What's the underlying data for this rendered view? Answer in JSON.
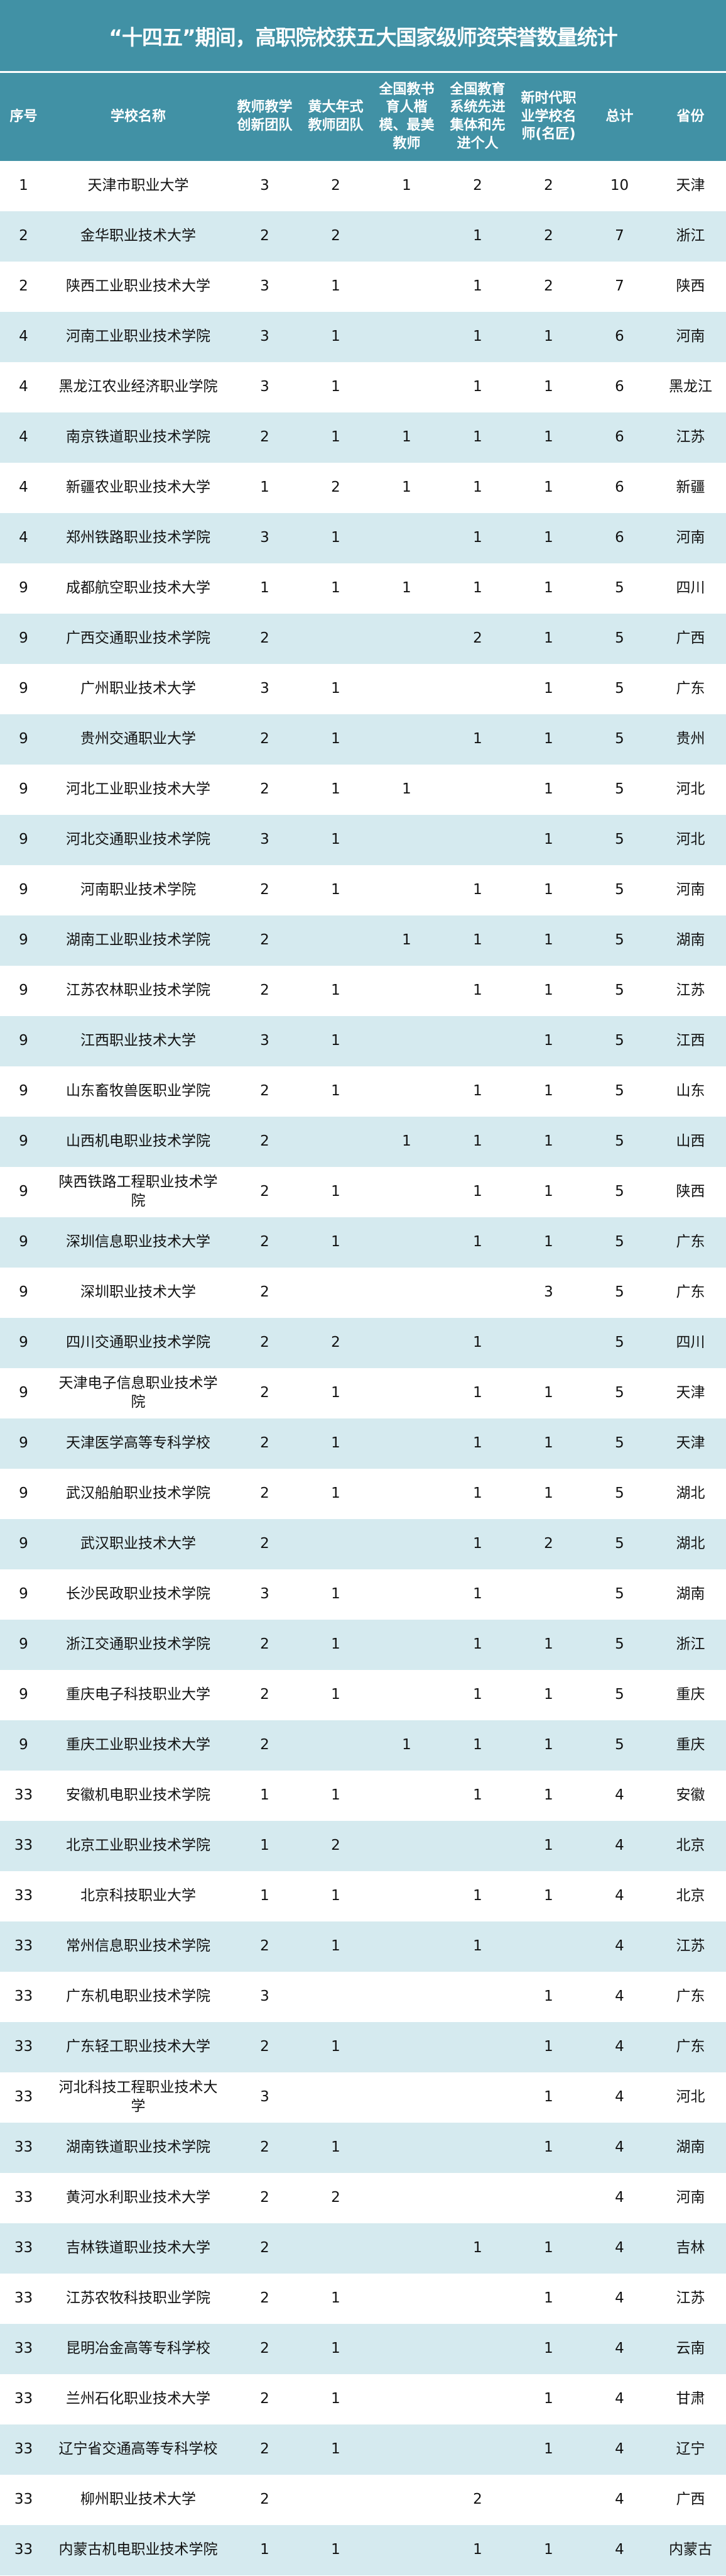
{
  "title": "“十四五”期间，高职院校获五大国家级师资荣誉数量统计",
  "colors": {
    "header_bg": "#4191a5",
    "stripe_bg": "#d5eaef"
  },
  "columns": [
    "序号",
    "学校名称",
    "教师教学创新团队",
    "黄大年式教师团队",
    "全国教书育人楷模、最美教师",
    "全国教育系统先进集体和先进个人",
    "新时代职业学校名师(名匠)",
    "总计",
    "省份"
  ],
  "rows": [
    [
      "1",
      "天津市职业大学",
      "3",
      "2",
      "1",
      "2",
      "2",
      "10",
      "天津"
    ],
    [
      "2",
      "金华职业技术大学",
      "2",
      "2",
      "",
      "1",
      "2",
      "7",
      "浙江"
    ],
    [
      "2",
      "陕西工业职业技术大学",
      "3",
      "1",
      "",
      "1",
      "2",
      "7",
      "陕西"
    ],
    [
      "4",
      "河南工业职业技术学院",
      "3",
      "1",
      "",
      "1",
      "1",
      "6",
      "河南"
    ],
    [
      "4",
      "黑龙江农业经济职业学院",
      "3",
      "1",
      "",
      "1",
      "1",
      "6",
      "黑龙江"
    ],
    [
      "4",
      "南京铁道职业技术学院",
      "2",
      "1",
      "1",
      "1",
      "1",
      "6",
      "江苏"
    ],
    [
      "4",
      "新疆农业职业技术大学",
      "1",
      "2",
      "1",
      "1",
      "1",
      "6",
      "新疆"
    ],
    [
      "4",
      "郑州铁路职业技术学院",
      "3",
      "1",
      "",
      "1",
      "1",
      "6",
      "河南"
    ],
    [
      "9",
      "成都航空职业技术大学",
      "1",
      "1",
      "1",
      "1",
      "1",
      "5",
      "四川"
    ],
    [
      "9",
      "广西交通职业技术学院",
      "2",
      "",
      "",
      "2",
      "1",
      "5",
      "广西"
    ],
    [
      "9",
      "广州职业技术大学",
      "3",
      "1",
      "",
      "",
      "1",
      "5",
      "广东"
    ],
    [
      "9",
      "贵州交通职业大学",
      "2",
      "1",
      "",
      "1",
      "1",
      "5",
      "贵州"
    ],
    [
      "9",
      "河北工业职业技术大学",
      "2",
      "1",
      "1",
      "",
      "1",
      "5",
      "河北"
    ],
    [
      "9",
      "河北交通职业技术学院",
      "3",
      "1",
      "",
      "",
      "1",
      "5",
      "河北"
    ],
    [
      "9",
      "河南职业技术学院",
      "2",
      "1",
      "",
      "1",
      "1",
      "5",
      "河南"
    ],
    [
      "9",
      "湖南工业职业技术学院",
      "2",
      "",
      "1",
      "1",
      "1",
      "5",
      "湖南"
    ],
    [
      "9",
      "江苏农林职业技术学院",
      "2",
      "1",
      "",
      "1",
      "1",
      "5",
      "江苏"
    ],
    [
      "9",
      "江西职业技术大学",
      "3",
      "1",
      "",
      "",
      "1",
      "5",
      "江西"
    ],
    [
      "9",
      "山东畜牧兽医职业学院",
      "2",
      "1",
      "",
      "1",
      "1",
      "5",
      "山东"
    ],
    [
      "9",
      "山西机电职业技术学院",
      "2",
      "",
      "1",
      "1",
      "1",
      "5",
      "山西"
    ],
    [
      "9",
      "陕西铁路工程职业技术学院",
      "2",
      "1",
      "",
      "1",
      "1",
      "5",
      "陕西"
    ],
    [
      "9",
      "深圳信息职业技术大学",
      "2",
      "1",
      "",
      "1",
      "1",
      "5",
      "广东"
    ],
    [
      "9",
      "深圳职业技术大学",
      "2",
      "",
      "",
      "",
      "3",
      "5",
      "广东"
    ],
    [
      "9",
      "四川交通职业技术学院",
      "2",
      "2",
      "",
      "1",
      "",
      "5",
      "四川"
    ],
    [
      "9",
      "天津电子信息职业技术学院",
      "2",
      "1",
      "",
      "1",
      "1",
      "5",
      "天津"
    ],
    [
      "9",
      "天津医学高等专科学校",
      "2",
      "1",
      "",
      "1",
      "1",
      "5",
      "天津"
    ],
    [
      "9",
      "武汉船舶职业技术学院",
      "2",
      "1",
      "",
      "1",
      "1",
      "5",
      "湖北"
    ],
    [
      "9",
      "武汉职业技术大学",
      "2",
      "",
      "",
      "1",
      "2",
      "5",
      "湖北"
    ],
    [
      "9",
      "长沙民政职业技术学院",
      "3",
      "1",
      "",
      "1",
      "",
      "5",
      "湖南"
    ],
    [
      "9",
      "浙江交通职业技术学院",
      "2",
      "1",
      "",
      "1",
      "1",
      "5",
      "浙江"
    ],
    [
      "9",
      "重庆电子科技职业大学",
      "2",
      "1",
      "",
      "1",
      "1",
      "5",
      "重庆"
    ],
    [
      "9",
      "重庆工业职业技术大学",
      "2",
      "",
      "1",
      "1",
      "1",
      "5",
      "重庆"
    ],
    [
      "33",
      "安徽机电职业技术学院",
      "1",
      "1",
      "",
      "1",
      "1",
      "4",
      "安徽"
    ],
    [
      "33",
      "北京工业职业技术学院",
      "1",
      "2",
      "",
      "",
      "1",
      "4",
      "北京"
    ],
    [
      "33",
      "北京科技职业大学",
      "1",
      "1",
      "",
      "1",
      "1",
      "4",
      "北京"
    ],
    [
      "33",
      "常州信息职业技术学院",
      "2",
      "1",
      "",
      "1",
      "",
      "4",
      "江苏"
    ],
    [
      "33",
      "广东机电职业技术学院",
      "3",
      "",
      "",
      "",
      "1",
      "4",
      "广东"
    ],
    [
      "33",
      "广东轻工职业技术大学",
      "2",
      "1",
      "",
      "",
      "1",
      "4",
      "广东"
    ],
    [
      "33",
      "河北科技工程职业技术大学",
      "3",
      "",
      "",
      "",
      "1",
      "4",
      "河北"
    ],
    [
      "33",
      "湖南铁道职业技术学院",
      "2",
      "1",
      "",
      "",
      "1",
      "4",
      "湖南"
    ],
    [
      "33",
      "黄河水利职业技术大学",
      "2",
      "2",
      "",
      "",
      "",
      "4",
      "河南"
    ],
    [
      "33",
      "吉林铁道职业技术大学",
      "2",
      "",
      "",
      "1",
      "1",
      "4",
      "吉林"
    ],
    [
      "33",
      "江苏农牧科技职业学院",
      "2",
      "1",
      "",
      "",
      "1",
      "4",
      "江苏"
    ],
    [
      "33",
      "昆明冶金高等专科学校",
      "2",
      "1",
      "",
      "",
      "1",
      "4",
      "云南"
    ],
    [
      "33",
      "兰州石化职业技术大学",
      "2",
      "1",
      "",
      "",
      "1",
      "4",
      "甘肃"
    ],
    [
      "33",
      "辽宁省交通高等专科学校",
      "2",
      "1",
      "",
      "",
      "1",
      "4",
      "辽宁"
    ],
    [
      "33",
      "柳州职业技术大学",
      "2",
      "",
      "",
      "2",
      "",
      "4",
      "广西"
    ],
    [
      "33",
      "内蒙古机电职业技术学院",
      "1",
      "1",
      "",
      "1",
      "1",
      "4",
      "内蒙古"
    ]
  ]
}
